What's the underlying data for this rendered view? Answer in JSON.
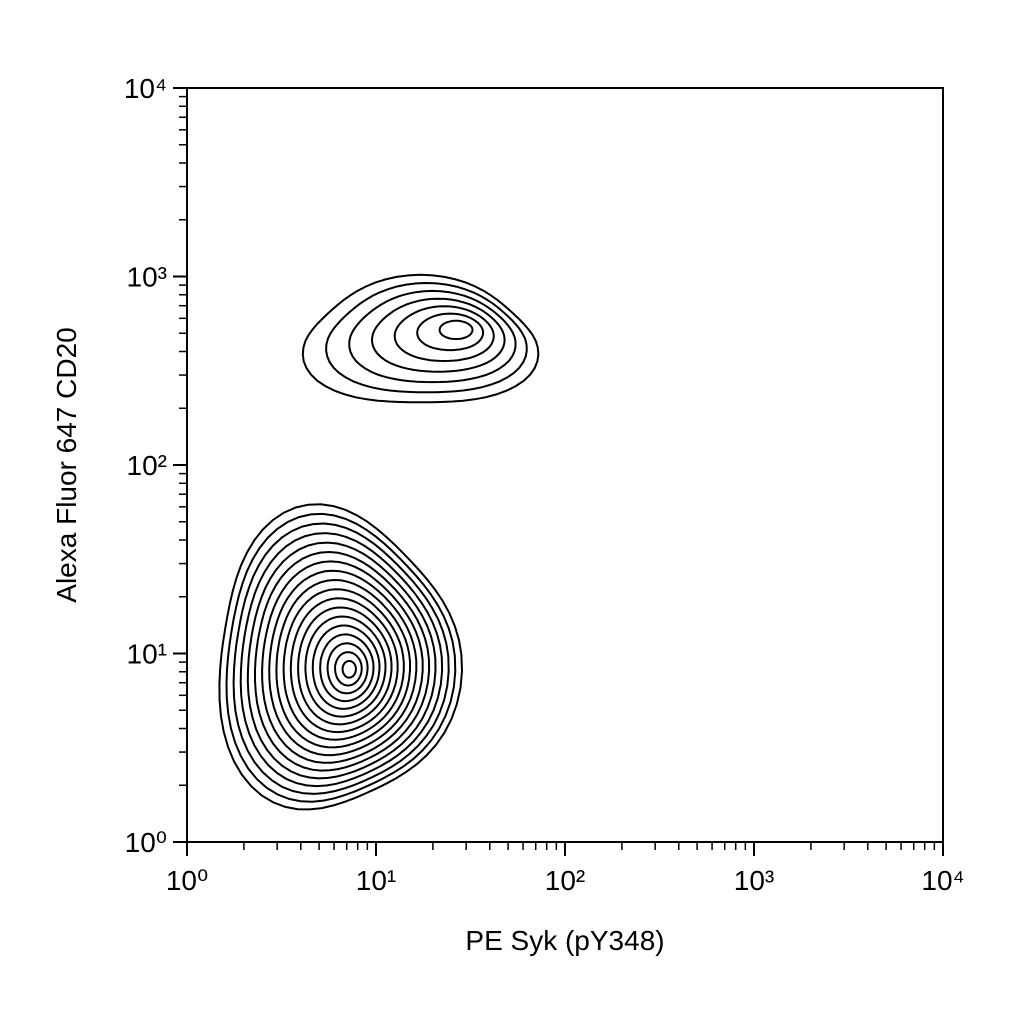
{
  "chart_data": {
    "type": "contour",
    "x_label": "PE Syk (pY348)",
    "y_label": "Alexa Fluor 647 CD20",
    "xscale": "log",
    "yscale": "log",
    "xlim": [
      1,
      10000
    ],
    "ylim": [
      1,
      10000
    ],
    "xticks": [
      {
        "value": 1,
        "label": "10⁰"
      },
      {
        "value": 10,
        "label": "10¹"
      },
      {
        "value": 100,
        "label": "10²"
      },
      {
        "value": 1000,
        "label": "10³"
      },
      {
        "value": 10000,
        "label": "10⁴"
      }
    ],
    "yticks": [
      {
        "value": 1,
        "label": "10⁰"
      },
      {
        "value": 10,
        "label": "10¹"
      },
      {
        "value": 100,
        "label": "10²"
      },
      {
        "value": 1000,
        "label": "10³"
      },
      {
        "value": 10000,
        "label": "10⁴"
      }
    ],
    "xminorticks": [
      2,
      3,
      4,
      5,
      6,
      7,
      8,
      9,
      20,
      30,
      40,
      50,
      60,
      70,
      80,
      90,
      200,
      300,
      400,
      500,
      600,
      700,
      800,
      900,
      2000,
      3000,
      4000,
      5000,
      6000,
      7000,
      8000,
      9000
    ],
    "yminorticks": [
      2,
      3,
      4,
      5,
      6,
      7,
      8,
      9,
      20,
      30,
      40,
      50,
      60,
      70,
      80,
      90,
      200,
      300,
      400,
      500,
      600,
      700,
      800,
      900,
      2000,
      3000,
      4000,
      5000,
      6000,
      7000,
      8000,
      9000
    ],
    "color": "#000000",
    "populations": [
      {
        "x": 28.5,
        "y": 535
      },
      {
        "x": 7.3,
        "y": 8.2
      }
    ]
  }
}
